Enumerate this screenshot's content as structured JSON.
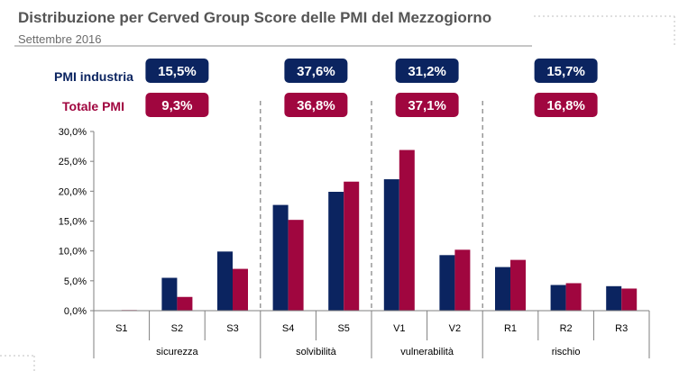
{
  "header": {
    "title": "Distribuzione  per Cerved Group Score delle PMI del Mezzogiorno",
    "subtitle": "Settembre 2016"
  },
  "colors": {
    "industria": "#0B2460",
    "totale": "#A0063F",
    "axis": "#7f7f7f",
    "divider": "#7f7f7f",
    "title": "#555555"
  },
  "summary": {
    "rows": [
      {
        "label": "PMI industria",
        "color": "#0B2460",
        "values": [
          "15,5%",
          "37,6%",
          "31,2%",
          "15,7%"
        ]
      },
      {
        "label": "Totale PMI",
        "color": "#A0063F",
        "values": [
          "9,3%",
          "36,8%",
          "37,1%",
          "16,8%"
        ]
      }
    ]
  },
  "chart_data": {
    "type": "bar",
    "title": "",
    "categories": [
      "S1",
      "S2",
      "S3",
      "S4",
      "S5",
      "V1",
      "V2",
      "R1",
      "R2",
      "R3"
    ],
    "groups": [
      {
        "label": "sicurezza",
        "categories": [
          "S1",
          "S2",
          "S3"
        ]
      },
      {
        "label": "solvibilità",
        "categories": [
          "S4",
          "S5"
        ]
      },
      {
        "label": "vulnerabilità",
        "categories": [
          "V1",
          "V2"
        ]
      },
      {
        "label": "rischio",
        "categories": [
          "R1",
          "R2",
          "R3"
        ]
      }
    ],
    "series": [
      {
        "values": [
          0.0,
          5.5,
          9.9,
          17.7,
          19.9,
          22.0,
          9.3,
          7.3,
          4.3,
          4.1
        ]
      },
      {
        "values": [
          0.1,
          2.3,
          7.0,
          15.2,
          21.6,
          26.9,
          10.2,
          8.5,
          4.6,
          3.7
        ]
      }
    ],
    "ylim": [
      0,
      30
    ],
    "yticks": [
      "0,0%",
      "5,0%",
      "10,0%",
      "15,0%",
      "20,0%",
      "25,0%",
      "30,0%"
    ],
    "xlabel": "",
    "ylabel": "",
    "grid": false,
    "legend": "none"
  }
}
